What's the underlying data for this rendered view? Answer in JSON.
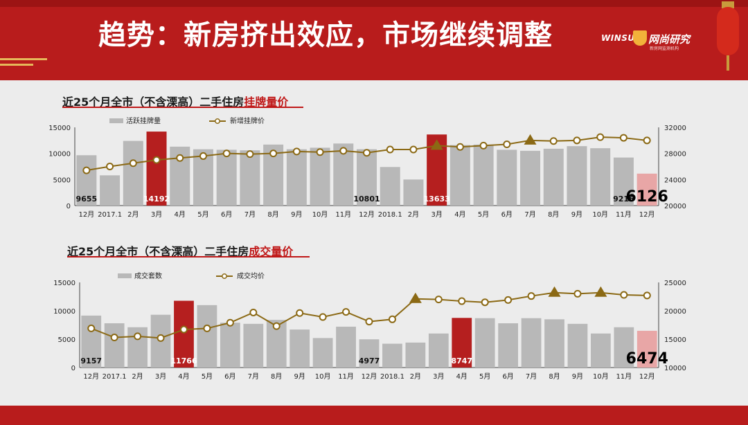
{
  "title": "趋势：新房挤出效应，市场继续调整",
  "logo": {
    "en": "WINSUN",
    "cn": "网尚研究",
    "sub": "新房网监测机构"
  },
  "colors": {
    "bar_gray": "#b8b8b8",
    "bar_red": "#b51f1f",
    "bar_pink": "#e8a6a6",
    "line": "#8b6914",
    "triangle": "#8b6914",
    "header": "#b81c1c"
  },
  "subtitles": [
    {
      "prefix": "近25个月全市（不含溧高）二手住房",
      "highlight": "挂牌量价"
    },
    {
      "prefix": "近25个月全市（不含溧高）二手住房",
      "highlight": "成交量价"
    }
  ],
  "chart_data": [
    {
      "type": "bar+line",
      "title": "近25个月全市（不含溧高）二手住房挂牌量价",
      "categories": [
        "12月",
        "2017.1",
        "2月",
        "3月",
        "4月",
        "5月",
        "6月",
        "7月",
        "8月",
        "9月",
        "10月",
        "11月",
        "12月",
        "2018.1",
        "2月",
        "3月",
        "4月",
        "5月",
        "6月",
        "7月",
        "8月",
        "9月",
        "10月",
        "11月",
        "12月"
      ],
      "series": [
        {
          "name": "活跃挂牌量",
          "kind": "bar",
          "axis": "left",
          "values": [
            9655,
            5800,
            12400,
            14192,
            11300,
            10800,
            10700,
            10600,
            11700,
            10800,
            11100,
            11900,
            10801,
            7400,
            5000,
            13633,
            11600,
            11700,
            10700,
            10500,
            10900,
            11400,
            11000,
            9216,
            6126
          ]
        },
        {
          "name": "新增挂牌价",
          "kind": "line",
          "axis": "right",
          "values": [
            25400,
            26000,
            26500,
            27000,
            27300,
            27600,
            28000,
            27900,
            28000,
            28300,
            28200,
            28400,
            28100,
            28600,
            28600,
            29200,
            29000,
            29200,
            29400,
            30000,
            29900,
            30000,
            30500,
            30400,
            30000
          ]
        }
      ],
      "highlight_bars": {
        "red": [
          3,
          15
        ],
        "pink": [
          24
        ]
      },
      "triangle_markers": [
        15,
        19
      ],
      "data_labels": [
        {
          "index": 0,
          "text": "9655",
          "size": "small"
        },
        {
          "index": 3,
          "text": "14192",
          "size": "small"
        },
        {
          "index": 12,
          "text": "10801",
          "size": "small"
        },
        {
          "index": 15,
          "text": "13633",
          "size": "small"
        },
        {
          "index": 23,
          "text": "9216",
          "size": "small"
        },
        {
          "index": 24,
          "text": "6126",
          "size": "big"
        }
      ],
      "ylim_left": [
        0,
        15000
      ],
      "yticks_left": [
        "0",
        "5000",
        "10000",
        "15000"
      ],
      "ylim_right": [
        20000,
        32000
      ],
      "yticks_right": [
        "20000",
        "24000",
        "28000",
        "32000"
      ],
      "legend_bar": "活跃挂牌量",
      "legend_line": "新增挂牌价"
    },
    {
      "type": "bar+line",
      "title": "近25个月全市（不含溧高）二手住房成交量价",
      "categories": [
        "12月",
        "2017.1",
        "2月",
        "3月",
        "4月",
        "5月",
        "6月",
        "7月",
        "8月",
        "9月",
        "10月",
        "11月",
        "12月",
        "2018.1",
        "2月",
        "3月",
        "4月",
        "5月",
        "6月",
        "7月",
        "8月",
        "9月",
        "10月",
        "11月",
        "12月"
      ],
      "series": [
        {
          "name": "成交套数",
          "kind": "bar",
          "axis": "left",
          "values": [
            9157,
            7800,
            7100,
            9300,
            11766,
            11000,
            7900,
            7700,
            8400,
            6700,
            5200,
            7200,
            4977,
            4200,
            4400,
            6000,
            8747,
            8700,
            7800,
            8700,
            8500,
            7700,
            6000,
            7100,
            6474
          ]
        },
        {
          "name": "成交均价",
          "kind": "line",
          "axis": "right",
          "values": [
            16900,
            15300,
            15500,
            15200,
            16700,
            16900,
            17900,
            19700,
            17300,
            19600,
            18900,
            19800,
            18100,
            18500,
            22100,
            22000,
            21700,
            21500,
            21900,
            22600,
            23200,
            23000,
            23200,
            22800,
            22700
          ]
        }
      ],
      "highlight_bars": {
        "red": [
          4,
          16
        ],
        "pink": [
          24
        ]
      },
      "triangle_markers": [
        14,
        20,
        22
      ],
      "data_labels": [
        {
          "index": 0,
          "text": "9157",
          "size": "small"
        },
        {
          "index": 4,
          "text": "11766",
          "size": "small"
        },
        {
          "index": 12,
          "text": "4977",
          "size": "small"
        },
        {
          "index": 16,
          "text": "8747",
          "size": "small"
        },
        {
          "index": 24,
          "text": "6474",
          "size": "big"
        }
      ],
      "ylim_left": [
        0,
        15000
      ],
      "yticks_left": [
        "0",
        "5000",
        "10000",
        "15000"
      ],
      "ylim_right": [
        10000,
        25000
      ],
      "yticks_right": [
        "10000",
        "15000",
        "20000",
        "25000"
      ],
      "legend_bar": "成交套数",
      "legend_line": "成交均价"
    }
  ]
}
